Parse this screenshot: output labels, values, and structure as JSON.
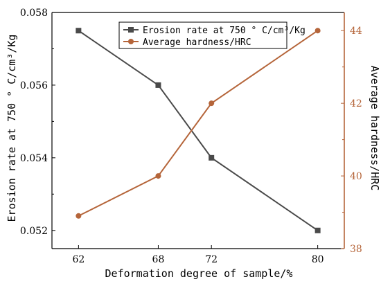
{
  "chart_data": {
    "type": "line",
    "xlabel": "Deformation degree of sample/%",
    "x_ticks": [
      "62",
      "68",
      "72",
      "80"
    ],
    "x": [
      62,
      68,
      72,
      80
    ],
    "xlim": [
      60,
      82
    ],
    "y_left": {
      "label": "Erosion rate at 750 ° C/cm³/Kg",
      "lim": [
        0.0515,
        0.058
      ],
      "ticks": [
        "0.052",
        "0.054",
        "0.056",
        "0.058"
      ],
      "color": "#000000"
    },
    "y_right": {
      "label": "Average hardness/HRC",
      "lim": [
        38,
        44.5
      ],
      "ticks": [
        "38",
        "40",
        "42",
        "44"
      ],
      "color": "#b5653a"
    },
    "series": [
      {
        "name": "Erosion rate at 750 ° C/cm³/Kg",
        "axis": "left",
        "color": "#4a4a4a",
        "marker": "square",
        "values": [
          0.0575,
          0.056,
          0.054,
          0.052
        ]
      },
      {
        "name": "Average hardness/HRC",
        "axis": "right",
        "color": "#b5653a",
        "marker": "circle",
        "values": [
          38.9,
          40.0,
          42.0,
          44.0
        ]
      }
    ],
    "legend_position": "top-center",
    "grid": false
  }
}
